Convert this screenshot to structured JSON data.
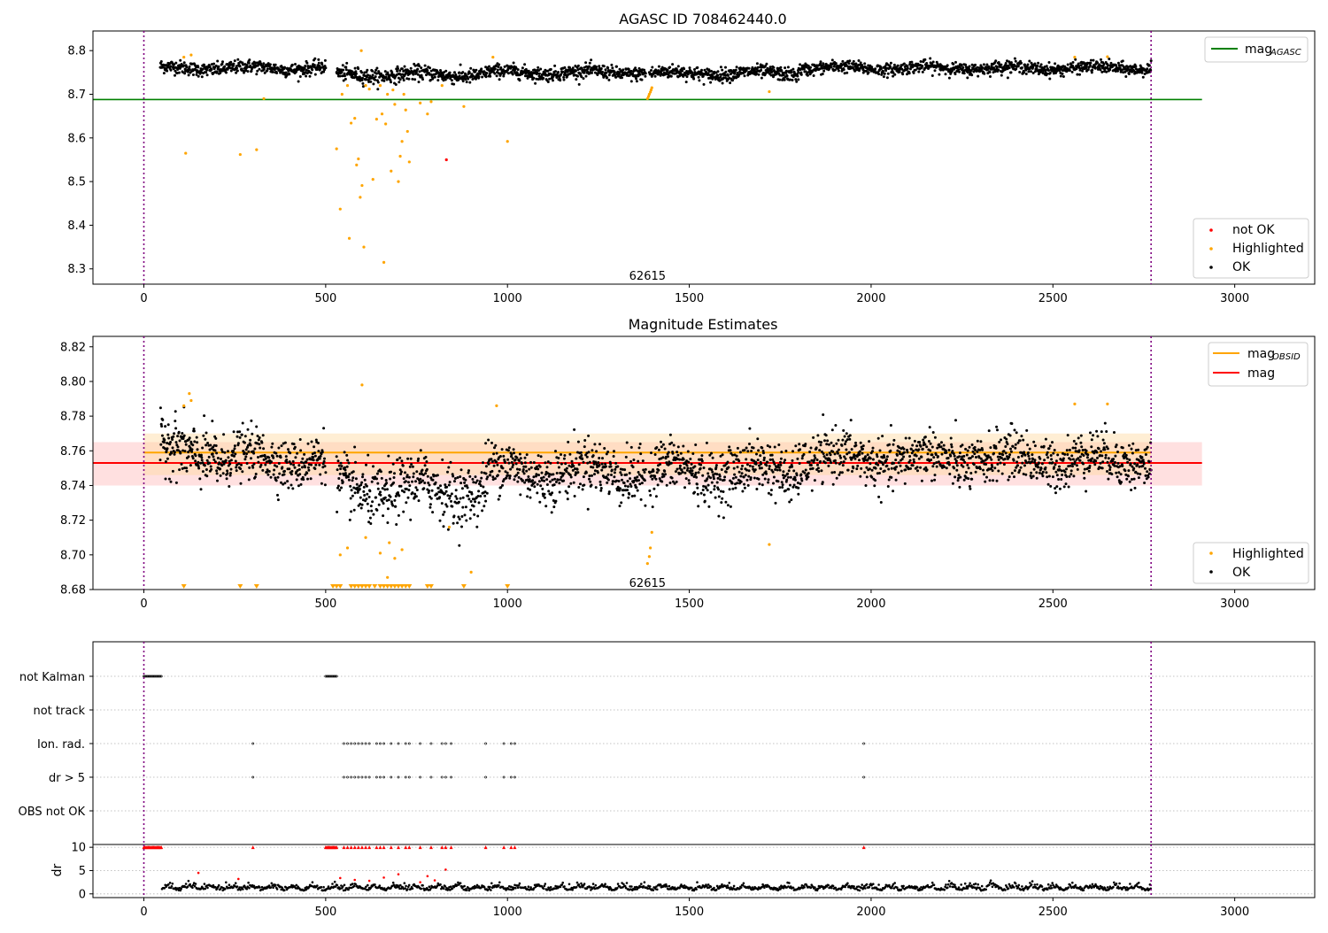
{
  "chart_data": [
    {
      "id": "agasc",
      "type": "scatter",
      "title": "AGASC ID 708462440.0",
      "xlim": [
        -140,
        3220
      ],
      "ylim": [
        8.265,
        8.845
      ],
      "xticks": [
        0,
        500,
        1000,
        1500,
        2000,
        2500,
        3000
      ],
      "yticks": [
        8.3,
        8.4,
        8.5,
        8.6,
        8.7,
        8.8
      ],
      "ytick_labels": [
        "8.3",
        "8.4",
        "8.5",
        "8.6",
        "8.7",
        "8.8"
      ],
      "vlines": [
        0,
        2770
      ],
      "annotation": {
        "text": "62615",
        "x": 1385,
        "y": 8.285
      },
      "hlines": [
        {
          "name": "mag_AGASC",
          "y": 8.688,
          "x": [
            -140,
            2910
          ],
          "color": "#008000"
        }
      ],
      "series": [
        {
          "name": "not OK",
          "color": "#ff0000",
          "points": [
            [
              832,
              8.55
            ]
          ]
        },
        {
          "name": "Highlighted",
          "color": "#ffa500",
          "points": [
            [
              110,
              8.785
            ],
            [
              115,
              8.565
            ],
            [
              130,
              8.79
            ],
            [
              265,
              8.562
            ],
            [
              310,
              8.573
            ],
            [
              330,
              8.69
            ],
            [
              530,
              8.575
            ],
            [
              540,
              8.437
            ],
            [
              545,
              8.7
            ],
            [
              560,
              8.72
            ],
            [
              565,
              8.37
            ],
            [
              570,
              8.634
            ],
            [
              580,
              8.645
            ],
            [
              585,
              8.538
            ],
            [
              590,
              8.552
            ],
            [
              595,
              8.464
            ],
            [
              598,
              8.8
            ],
            [
              600,
              8.491
            ],
            [
              605,
              8.35
            ],
            [
              610,
              8.72
            ],
            [
              620,
              8.712
            ],
            [
              630,
              8.505
            ],
            [
              640,
              8.643
            ],
            [
              650,
              8.72
            ],
            [
              655,
              8.655
            ],
            [
              660,
              8.315
            ],
            [
              665,
              8.632
            ],
            [
              670,
              8.7
            ],
            [
              680,
              8.524
            ],
            [
              685,
              8.71
            ],
            [
              690,
              8.677
            ],
            [
              700,
              8.5
            ],
            [
              705,
              8.558
            ],
            [
              710,
              8.592
            ],
            [
              715,
              8.7
            ],
            [
              720,
              8.664
            ],
            [
              725,
              8.615
            ],
            [
              730,
              8.545
            ],
            [
              760,
              8.68
            ],
            [
              780,
              8.655
            ],
            [
              790,
              8.683
            ],
            [
              820,
              8.72
            ],
            [
              880,
              8.672
            ],
            [
              960,
              8.785
            ],
            [
              1000,
              8.592
            ],
            [
              1385,
              8.69
            ],
            [
              1388,
              8.695
            ],
            [
              1390,
              8.7
            ],
            [
              1393,
              8.705
            ],
            [
              1395,
              8.71
            ],
            [
              1397,
              8.715
            ],
            [
              1720,
              8.706
            ],
            [
              2560,
              8.785
            ],
            [
              2650,
              8.786
            ]
          ]
        }
      ],
      "ok_series": {
        "name": "OK",
        "color": "#000000",
        "segments": [
          {
            "x0": 45,
            "x1": 500,
            "base": 8.76,
            "noise": 0.011,
            "n": 420
          },
          {
            "x0": 530,
            "x1": 940,
            "base": 8.745,
            "noise": 0.012,
            "n": 380
          },
          {
            "x0": 940,
            "x1": 1380,
            "base": 8.75,
            "noise": 0.011,
            "n": 420
          },
          {
            "x0": 1390,
            "x1": 1800,
            "base": 8.748,
            "noise": 0.011,
            "n": 400
          },
          {
            "x0": 1800,
            "x1": 2770,
            "base": 8.76,
            "noise": 0.01,
            "n": 900
          }
        ]
      },
      "legends": [
        {
          "position": "upper-right",
          "items": [
            {
              "label": "mag",
              "sub": "AGASC",
              "kind": "line",
              "color": "#008000"
            }
          ]
        },
        {
          "position": "lower-right",
          "items": [
            {
              "label": "not OK",
              "kind": "dot",
              "color": "#ff0000"
            },
            {
              "label": "Highlighted",
              "kind": "dot",
              "color": "#ffa500"
            },
            {
              "label": "OK",
              "kind": "dot",
              "color": "#000000"
            }
          ]
        }
      ]
    },
    {
      "id": "estimates",
      "type": "scatter",
      "title": "Magnitude Estimates",
      "xlim": [
        -140,
        3220
      ],
      "ylim": [
        8.68,
        8.826
      ],
      "xticks": [
        0,
        500,
        1000,
        1500,
        2000,
        2500,
        3000
      ],
      "yticks": [
        8.68,
        8.7,
        8.72,
        8.74,
        8.76,
        8.78,
        8.8,
        8.82
      ],
      "ytick_labels": [
        "8.68",
        "8.70",
        "8.72",
        "8.74",
        "8.76",
        "8.78",
        "8.80",
        "8.82"
      ],
      "vlines": [
        0,
        2770
      ],
      "annotation": {
        "text": "62615",
        "x": 1385,
        "y": 8.684
      },
      "bands": [
        {
          "y0": 8.74,
          "y1": 8.765,
          "x": [
            -140,
            2910
          ],
          "color": "#ffcccc",
          "opacity": 0.6
        },
        {
          "y0": 8.746,
          "y1": 8.77,
          "x": [
            0,
            2770
          ],
          "color": "#ffd9a0",
          "opacity": 0.45
        }
      ],
      "hlines": [
        {
          "name": "mag_OBSID",
          "y": 8.759,
          "x": [
            0,
            2770
          ],
          "color": "#ffa500"
        },
        {
          "name": "mag",
          "y": 8.753,
          "x": [
            -140,
            2910
          ],
          "color": "#ff0000"
        }
      ],
      "series": [
        {
          "name": "Highlighted",
          "color": "#ffa500",
          "points": [
            [
              110,
              8.786
            ],
            [
              125,
              8.793
            ],
            [
              130,
              8.789
            ],
            [
              540,
              8.7
            ],
            [
              560,
              8.704
            ],
            [
              600,
              8.798
            ],
            [
              610,
              8.71
            ],
            [
              650,
              8.701
            ],
            [
              670,
              8.687
            ],
            [
              675,
              8.707
            ],
            [
              690,
              8.698
            ],
            [
              710,
              8.703
            ],
            [
              840,
              8.716
            ],
            [
              900,
              8.69
            ],
            [
              970,
              8.786
            ],
            [
              1385,
              8.695
            ],
            [
              1390,
              8.699
            ],
            [
              1393,
              8.704
            ],
            [
              1397,
              8.713
            ],
            [
              1720,
              8.706
            ],
            [
              2560,
              8.787
            ],
            [
              2650,
              8.787
            ]
          ]
        },
        {
          "name": "Highlighted-clipped",
          "color": "#ffa500",
          "marker": "triangle",
          "y": 8.6815,
          "xs": [
            110,
            265,
            310,
            520,
            530,
            540,
            570,
            580,
            590,
            600,
            610,
            620,
            635,
            650,
            660,
            670,
            680,
            690,
            700,
            710,
            720,
            730,
            780,
            790,
            880,
            1000
          ]
        }
      ],
      "ok_series": {
        "name": "OK",
        "color": "#000000",
        "segments": [
          {
            "x0": 45,
            "x1": 200,
            "base": 8.76,
            "noise": 0.012,
            "n": 160
          },
          {
            "x0": 200,
            "x1": 500,
            "base": 8.755,
            "noise": 0.01,
            "n": 280
          },
          {
            "x0": 530,
            "x1": 940,
            "base": 8.738,
            "noise": 0.012,
            "n": 380
          },
          {
            "x0": 940,
            "x1": 1380,
            "base": 8.748,
            "noise": 0.011,
            "n": 420
          },
          {
            "x0": 1390,
            "x1": 1800,
            "base": 8.748,
            "noise": 0.011,
            "n": 400
          },
          {
            "x0": 1800,
            "x1": 2770,
            "base": 8.755,
            "noise": 0.01,
            "n": 900
          }
        ]
      },
      "legends": [
        {
          "position": "upper-right",
          "items": [
            {
              "label": "mag",
              "sub": "OBSID",
              "kind": "line",
              "color": "#ffa500"
            },
            {
              "label": "mag",
              "kind": "line",
              "color": "#ff0000"
            }
          ]
        },
        {
          "position": "lower-right",
          "items": [
            {
              "label": "Highlighted",
              "kind": "dot",
              "color": "#ffa500"
            },
            {
              "label": "OK",
              "kind": "dot",
              "color": "#000000"
            }
          ]
        }
      ]
    },
    {
      "id": "flags",
      "type": "scatter",
      "xlim": [
        -140,
        3220
      ],
      "vlines": [
        0,
        2770
      ],
      "rows": [
        "not Kalman",
        "not track",
        "Ion. rad.",
        "dr > 5",
        "OBS not OK"
      ],
      "row_points": {
        "not Kalman": [
          [
            0,
            50
          ],
          [
            500,
            530
          ]
        ],
        "Ion. rad.": [
          300,
          550,
          560,
          570,
          580,
          590,
          600,
          610,
          620,
          640,
          650,
          660,
          680,
          700,
          720,
          730,
          760,
          790,
          820,
          830,
          845,
          940,
          990,
          1010,
          1020,
          1980
        ],
        "dr > 5": [
          300,
          550,
          560,
          570,
          580,
          590,
          600,
          610,
          620,
          640,
          650,
          660,
          680,
          700,
          720,
          730,
          760,
          790,
          820,
          830,
          845,
          940,
          990,
          1010,
          1020,
          1980
        ]
      }
    },
    {
      "id": "dr",
      "type": "scatter",
      "ylabel": "dr",
      "xlim": [
        -140,
        3220
      ],
      "xticks": [
        0,
        500,
        1000,
        1500,
        2000,
        2500,
        3000
      ],
      "ylim": [
        -0.8,
        10.6
      ],
      "yticks": [
        0,
        5,
        10
      ],
      "vlines": [
        0,
        2770
      ],
      "red_at_10": [
        [
          0,
          50
        ],
        [
          500,
          530
        ],
        300,
        550,
        560,
        570,
        580,
        590,
        600,
        610,
        620,
        640,
        650,
        660,
        680,
        700,
        720,
        730,
        760,
        790,
        820,
        830,
        845,
        940,
        990,
        1010,
        1020,
        1980
      ],
      "red_scatter": [
        [
          150,
          4.5
        ],
        [
          260,
          3.2
        ],
        [
          540,
          3.4
        ],
        [
          580,
          3.0
        ],
        [
          620,
          2.8
        ],
        [
          660,
          3.5
        ],
        [
          700,
          4.2
        ],
        [
          760,
          2.5
        ],
        [
          780,
          3.8
        ],
        [
          800,
          2.9
        ],
        [
          830,
          5.2
        ]
      ]
    }
  ]
}
